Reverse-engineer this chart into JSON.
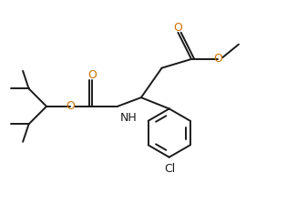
{
  "bg_color": "#ffffff",
  "line_color": "#1a1a1a",
  "o_color": "#cc7000",
  "cl_color": "#1a1a1a",
  "n_color": "#1a1a1a",
  "line_width": 1.4,
  "figsize": [
    3.26,
    2.23
  ],
  "dpi": 100,
  "xlim": [
    0,
    10
  ],
  "ylim": [
    0,
    6.83
  ]
}
